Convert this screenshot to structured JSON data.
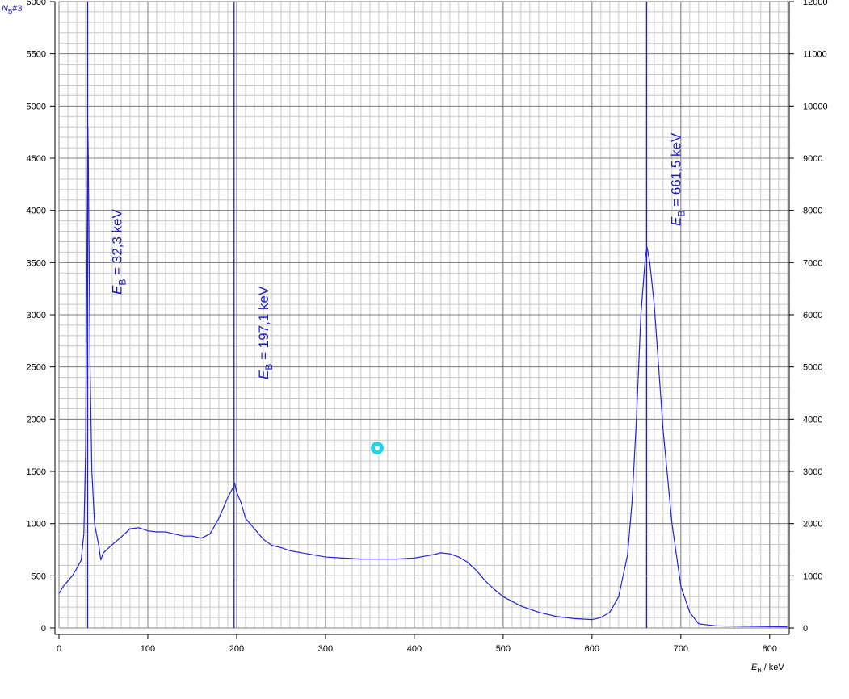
{
  "chart_data": {
    "type": "line",
    "y_title": {
      "symbol": "N",
      "sub": "B",
      "text": "#3"
    },
    "x_title": {
      "symbol": "E",
      "sub": "B",
      "text": "/ keV"
    },
    "x": [
      0,
      5,
      10,
      15,
      20,
      25,
      28,
      30,
      31,
      32,
      32.5,
      33,
      34,
      35,
      37,
      40,
      45,
      47,
      50,
      55,
      60,
      70,
      80,
      90,
      100,
      110,
      120,
      130,
      140,
      150,
      160,
      170,
      180,
      190,
      195,
      198,
      200,
      205,
      210,
      220,
      230,
      240,
      250,
      260,
      280,
      300,
      320,
      340,
      360,
      380,
      400,
      420,
      430,
      440,
      450,
      460,
      470,
      480,
      490,
      500,
      520,
      540,
      560,
      580,
      600,
      610,
      620,
      630,
      640,
      645,
      650,
      655,
      660,
      662,
      665,
      670,
      675,
      680,
      690,
      700,
      710,
      720,
      740,
      780,
      820
    ],
    "series": [
      {
        "color": "#2323dc",
        "values": [
          330,
          400,
          450,
          500,
          570,
          650,
          900,
          1700,
          3000,
          4200,
          4800,
          4500,
          3500,
          2500,
          1500,
          1000,
          780,
          650,
          720,
          760,
          800,
          870,
          950,
          960,
          930,
          920,
          920,
          900,
          880,
          880,
          860,
          900,
          1050,
          1250,
          1330,
          1380,
          1300,
          1200,
          1050,
          950,
          850,
          790,
          770,
          740,
          710,
          680,
          670,
          660,
          660,
          660,
          670,
          700,
          720,
          710,
          680,
          630,
          550,
          450,
          370,
          300,
          210,
          150,
          110,
          90,
          80,
          100,
          150,
          300,
          700,
          1200,
          2000,
          3000,
          3550,
          3650,
          3500,
          3100,
          2500,
          1900,
          1000,
          400,
          150,
          40,
          20,
          15,
          10
        ]
      }
    ],
    "xlim": [
      0,
      822
    ],
    "ylim": [
      0,
      6000
    ],
    "y2lim": [
      0,
      12000
    ],
    "xticks": [
      0,
      100,
      200,
      300,
      400,
      500,
      600,
      700,
      800
    ],
    "yticks": [
      0,
      500,
      1000,
      1500,
      2000,
      2500,
      3000,
      3500,
      4000,
      4500,
      5000,
      5500,
      6000
    ],
    "y2ticks": [
      0,
      1000,
      2000,
      3000,
      4000,
      5000,
      6000,
      7000,
      8000,
      9000,
      10000,
      11000,
      12000
    ],
    "grid": true,
    "minor_grid": {
      "x": 10,
      "y": 100
    },
    "annotations": [
      {
        "x": 32.3,
        "symbol": "E",
        "sub": "B",
        "text": " = 32,3 keV"
      },
      {
        "x": 197.1,
        "symbol": "E",
        "sub": "B",
        "text": " = 197,1 keV"
      },
      {
        "x": 661.5,
        "symbol": "E",
        "sub": "B",
        "text": " = 661,5 keV"
      }
    ]
  }
}
